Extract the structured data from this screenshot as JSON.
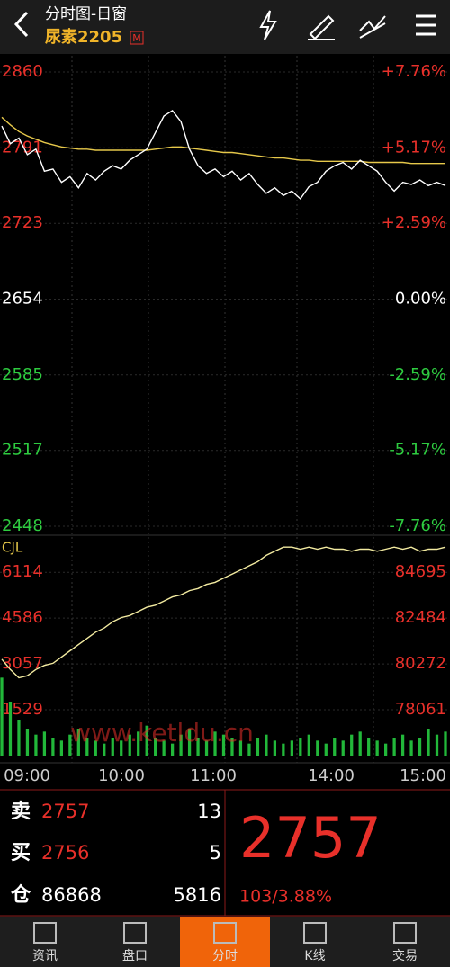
{
  "header": {
    "title": "分时图-日窗",
    "symbol": "尿素2205",
    "badge": "M"
  },
  "price_panel": {
    "ylim": [
      2448,
      2860
    ],
    "pct_lim": [
      -7.76,
      7.76
    ],
    "yticks": [
      2860,
      2791,
      2723,
      2654,
      2585,
      2517,
      2448
    ],
    "pct_ticks": [
      {
        "value": 7.76,
        "label": "+7.76%"
      },
      {
        "value": 5.17,
        "label": "+5.17%"
      },
      {
        "value": 2.59,
        "label": "+2.59%"
      },
      {
        "value": 0,
        "label": "0.00%"
      },
      {
        "value": -2.59,
        "label": "-2.59%"
      },
      {
        "value": -5.17,
        "label": "-5.17%"
      },
      {
        "value": -7.76,
        "label": "-7.76%"
      }
    ],
    "price": {
      "color": "#ffffff",
      "values": [
        2811,
        2795,
        2800,
        2785,
        2790,
        2770,
        2772,
        2760,
        2765,
        2755,
        2768,
        2762,
        2770,
        2775,
        2772,
        2780,
        2785,
        2790,
        2805,
        2820,
        2825,
        2815,
        2790,
        2775,
        2768,
        2772,
        2765,
        2770,
        2762,
        2768,
        2758,
        2750,
        2755,
        2748,
        2752,
        2745,
        2756,
        2760,
        2770,
        2775,
        2778,
        2772,
        2780,
        2775,
        2770,
        2760,
        2752,
        2760,
        2758,
        2762,
        2757,
        2760,
        2757
      ]
    },
    "average": {
      "color": "#e6c84a",
      "values": [
        2819,
        2812,
        2806,
        2802,
        2799,
        2796,
        2794,
        2792,
        2791,
        2790,
        2790,
        2789,
        2789,
        2789,
        2789,
        2789,
        2789,
        2789,
        2790,
        2791,
        2792,
        2792,
        2791,
        2790,
        2789,
        2788,
        2787,
        2787,
        2786,
        2785,
        2784,
        2783,
        2782,
        2782,
        2781,
        2780,
        2780,
        2779,
        2779,
        2779,
        2779,
        2779,
        2779,
        2778,
        2778,
        2778,
        2778,
        2778,
        2777,
        2777,
        2777,
        2777,
        2777
      ]
    }
  },
  "volume_panel": {
    "label": "CJL",
    "ylim": [
      0,
      7200
    ],
    "oi_lim": [
      75850,
      86256
    ],
    "yticks": [
      6114,
      4586,
      3057,
      1529
    ],
    "oi_ticks": [
      84695,
      82484,
      80272,
      78061
    ],
    "volume": {
      "color": "#22b83a",
      "values": [
        2600,
        1800,
        1200,
        900,
        700,
        800,
        600,
        500,
        700,
        900,
        600,
        500,
        400,
        600,
        500,
        700,
        800,
        1000,
        600,
        500,
        400,
        700,
        900,
        600,
        500,
        800,
        700,
        600,
        500,
        400,
        600,
        700,
        500,
        400,
        500,
        600,
        700,
        500,
        400,
        600,
        500,
        700,
        800,
        600,
        500,
        400,
        600,
        700,
        500,
        600,
        900,
        700,
        800
      ]
    },
    "open_interest": {
      "color": "#f2eaa0",
      "values": [
        80500,
        80000,
        79600,
        79700,
        80000,
        80200,
        80300,
        80600,
        80900,
        81200,
        81500,
        81800,
        82000,
        82300,
        82500,
        82600,
        82800,
        83000,
        83100,
        83300,
        83500,
        83600,
        83800,
        83900,
        84100,
        84200,
        84400,
        84600,
        84800,
        85000,
        85200,
        85500,
        85700,
        85900,
        85900,
        85800,
        85900,
        85800,
        85900,
        85800,
        85800,
        85700,
        85800,
        85800,
        85700,
        85800,
        85900,
        85800,
        85900,
        85700,
        85800,
        85800,
        85900
      ]
    }
  },
  "times": [
    "09:00",
    "10:00",
    "11:00",
    "14:00",
    "15:00"
  ],
  "watermark": "www.ketldu.cn",
  "quote": {
    "sell": {
      "label": "卖",
      "price": "2757",
      "qty": "13"
    },
    "buy": {
      "label": "买",
      "price": "2756",
      "qty": "5"
    },
    "oi": {
      "label": "仓",
      "value": "86868",
      "change": "5816"
    },
    "last": "2757",
    "change": "103/3.88%"
  },
  "tabs": [
    "资讯",
    "盘口",
    "分时",
    "K线",
    "交易"
  ]
}
